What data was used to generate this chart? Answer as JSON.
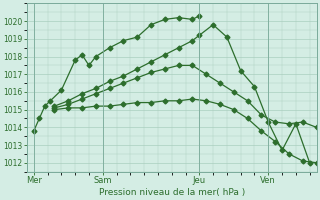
{
  "bg_color": "#d4ede4",
  "grid_color": "#aacfbf",
  "line_color": "#2d6e2d",
  "xlabel": "Pression niveau de la mer( hPa )",
  "xlabel_color": "#2d6e2d",
  "ylim": [
    1011.5,
    1021.0
  ],
  "ytick_values": [
    1012,
    1013,
    1014,
    1015,
    1016,
    1017,
    1018,
    1019,
    1020
  ],
  "xtick_labels": [
    "Mer",
    "Sam",
    "Jeu",
    "Ven"
  ],
  "xtick_positions": [
    0,
    5,
    12,
    17
  ],
  "xlim": [
    -0.5,
    20.5
  ],
  "vlines": [
    0,
    5,
    12,
    17
  ],
  "series": [
    {
      "x": [
        0,
        0.4,
        0.8,
        1.2,
        2.0,
        3.0,
        3.5,
        4.0,
        4.5,
        5.5,
        6.5,
        7.5,
        8.5,
        9.5,
        10.5,
        11.5,
        12.0
      ],
      "y": [
        1013.8,
        1014.5,
        1015.2,
        1015.5,
        1016.1,
        1017.8,
        1018.1,
        1017.5,
        1018.0,
        1018.5,
        1018.9,
        1019.1,
        1019.8,
        1020.1,
        1020.2,
        1020.1,
        1020.3
      ]
    },
    {
      "x": [
        1.5,
        2.5,
        3.5,
        4.5,
        5.5,
        6.5,
        7.5,
        8.5,
        9.5,
        10.5,
        11.5,
        12.0,
        13.0,
        14.0,
        15.0,
        16.0,
        17.0,
        18.0,
        19.0,
        20.0
      ],
      "y": [
        1015.2,
        1015.5,
        1015.9,
        1016.2,
        1016.6,
        1016.9,
        1017.3,
        1017.7,
        1018.1,
        1018.5,
        1018.9,
        1019.2,
        1019.8,
        1019.1,
        1017.2,
        1016.3,
        1014.3,
        1012.7,
        1014.2,
        1012.0
      ]
    },
    {
      "x": [
        1.5,
        2.5,
        3.5,
        4.5,
        5.5,
        6.5,
        7.5,
        8.5,
        9.5,
        10.5,
        11.5,
        12.5,
        13.5,
        14.5,
        15.5,
        16.5,
        17.5,
        18.5,
        19.5,
        20.5
      ],
      "y": [
        1015.1,
        1015.3,
        1015.6,
        1015.9,
        1016.2,
        1016.5,
        1016.8,
        1017.1,
        1017.3,
        1017.5,
        1017.5,
        1017.0,
        1016.5,
        1016.0,
        1015.5,
        1014.7,
        1014.3,
        1014.2,
        1014.3,
        1014.0
      ]
    },
    {
      "x": [
        1.5,
        2.5,
        3.5,
        4.5,
        5.5,
        6.5,
        7.5,
        8.5,
        9.5,
        10.5,
        11.5,
        12.5,
        13.5,
        14.5,
        15.5,
        16.5,
        17.5,
        18.5,
        19.5,
        20.5
      ],
      "y": [
        1015.0,
        1015.1,
        1015.1,
        1015.2,
        1015.2,
        1015.3,
        1015.4,
        1015.4,
        1015.5,
        1015.5,
        1015.6,
        1015.5,
        1015.3,
        1015.0,
        1014.5,
        1013.8,
        1013.2,
        1012.5,
        1012.1,
        1012.0
      ]
    }
  ]
}
